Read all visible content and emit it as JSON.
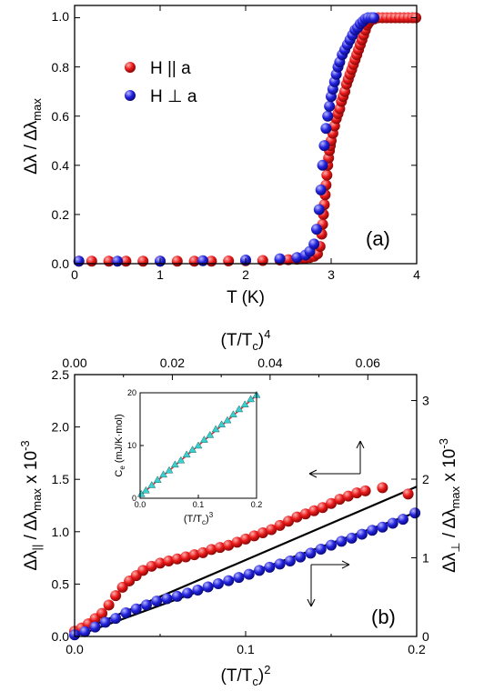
{
  "colors": {
    "parallel": "#e81818",
    "perp": "#2222dd",
    "inset_data": "#3ccfcf",
    "inset_fit": "#d03030",
    "fit": "#000000"
  },
  "chart_data": [
    {
      "id": "a",
      "type": "scatter",
      "panel_label": "(a)",
      "xlabel": "T (K)",
      "ylabel": "Δλ / Δλ",
      "ylabel_sub": "max",
      "xlim": [
        0,
        4
      ],
      "ylim": [
        0,
        1.05
      ],
      "xticks": [
        "0",
        "1",
        "2",
        "3",
        "4"
      ],
      "yticks": [
        "0.0",
        "0.2",
        "0.4",
        "0.6",
        "0.8",
        "1.0"
      ],
      "legend": {
        "placement": "top-left",
        "entries": [
          "H || a",
          "H ⊥ a"
        ]
      },
      "series": [
        {
          "name": "H || a",
          "color": "#e81818",
          "x": [
            0.05,
            0.2,
            0.4,
            0.6,
            0.8,
            1.0,
            1.2,
            1.4,
            1.6,
            1.8,
            2.0,
            2.2,
            2.4,
            2.5,
            2.6,
            2.65,
            2.7,
            2.75,
            2.8,
            2.84,
            2.87,
            2.89,
            2.9,
            2.91,
            2.92,
            2.93,
            2.94,
            2.95,
            2.96,
            2.97,
            2.98,
            2.99,
            3.0,
            3.02,
            3.04,
            3.06,
            3.08,
            3.1,
            3.12,
            3.14,
            3.16,
            3.18,
            3.2,
            3.22,
            3.24,
            3.26,
            3.28,
            3.3,
            3.32,
            3.34,
            3.36,
            3.38,
            3.4,
            3.42,
            3.44,
            3.46,
            3.5,
            3.55,
            3.6,
            3.65,
            3.7,
            3.75,
            3.8,
            3.85,
            3.9,
            3.95,
            3.99
          ],
          "y": [
            0.01,
            0.01,
            0.01,
            0.01,
            0.01,
            0.01,
            0.01,
            0.01,
            0.01,
            0.011,
            0.012,
            0.013,
            0.015,
            0.016,
            0.018,
            0.02,
            0.022,
            0.025,
            0.03,
            0.04,
            0.07,
            0.12,
            0.16,
            0.2,
            0.24,
            0.28,
            0.32,
            0.36,
            0.4,
            0.43,
            0.46,
            0.48,
            0.5,
            0.53,
            0.56,
            0.59,
            0.61,
            0.63,
            0.66,
            0.68,
            0.7,
            0.73,
            0.75,
            0.77,
            0.79,
            0.81,
            0.83,
            0.85,
            0.87,
            0.89,
            0.91,
            0.93,
            0.95,
            0.97,
            0.98,
            0.99,
            0.995,
            1.0,
            1.0,
            1.0,
            1.0,
            1.0,
            1.0,
            1.0,
            1.0,
            1.0,
            1.0
          ]
        },
        {
          "name": "H ⊥ a",
          "color": "#2222dd",
          "x": [
            0.05,
            0.5,
            1.0,
            1.5,
            2.0,
            2.4,
            2.6,
            2.7,
            2.75,
            2.8,
            2.83,
            2.86,
            2.88,
            2.9,
            2.92,
            2.94,
            2.96,
            2.98,
            3.0,
            3.02,
            3.04,
            3.06,
            3.08,
            3.1,
            3.13,
            3.16,
            3.19,
            3.22,
            3.25,
            3.28,
            3.31,
            3.34,
            3.37,
            3.4,
            3.43,
            3.47,
            3.5
          ],
          "y": [
            0.01,
            0.01,
            0.01,
            0.012,
            0.015,
            0.02,
            0.025,
            0.035,
            0.05,
            0.08,
            0.14,
            0.22,
            0.3,
            0.4,
            0.48,
            0.55,
            0.6,
            0.64,
            0.68,
            0.71,
            0.74,
            0.77,
            0.8,
            0.82,
            0.85,
            0.87,
            0.89,
            0.91,
            0.93,
            0.95,
            0.96,
            0.975,
            0.985,
            0.995,
            1.0,
            1.0,
            1.0
          ]
        }
      ]
    },
    {
      "id": "b",
      "type": "scatter",
      "panel_label": "(b)",
      "xlabel": "(T/T",
      "xlabel_sub": "c",
      "xlabel_end": ")",
      "xlabel_sup": "2",
      "xlim": [
        0,
        0.2
      ],
      "xticks": [
        "0.0",
        "0.1",
        "0.2"
      ],
      "top_xlabel": "(T/T",
      "top_xlabel_sub": "c",
      "top_xlabel_end": ")",
      "top_xlabel_sup": "4",
      "top_xlim": [
        0,
        0.07
      ],
      "top_xticks": [
        "0.00",
        "0.02",
        "0.04",
        "0.06"
      ],
      "ylabel_left": "Δλ",
      "ylabel_left_sub": "||",
      "ylabel_left_mid": " / Δλ",
      "ylabel_left_sub2": "max",
      "ylabel_left_end": " x 10",
      "ylabel_left_sup": "-3",
      "ylim_left": [
        0,
        2.5
      ],
      "yticks_left": [
        "0.0",
        "0.5",
        "1.0",
        "1.5",
        "2.0",
        "2.5"
      ],
      "ylabel_right": "Δλ",
      "ylabel_right_sub": "⊥",
      "ylabel_right_mid": " / Δλ",
      "ylabel_right_sub2": "max",
      "ylabel_right_end": " x 10",
      "ylabel_right_sup": "-3",
      "ylim_right": [
        0,
        3.33
      ],
      "yticks_right": [
        "0",
        "1",
        "2",
        "3"
      ],
      "series": [
        {
          "name": "H || a",
          "axis": "left",
          "color": "#e81818",
          "x": [
            0.0,
            0.004,
            0.008,
            0.012,
            0.016,
            0.02,
            0.024,
            0.028,
            0.032,
            0.036,
            0.04,
            0.045,
            0.05,
            0.055,
            0.06,
            0.065,
            0.07,
            0.075,
            0.08,
            0.085,
            0.09,
            0.095,
            0.1,
            0.105,
            0.11,
            0.115,
            0.12,
            0.125,
            0.13,
            0.135,
            0.14,
            0.145,
            0.15,
            0.155,
            0.16,
            0.165,
            0.17,
            0.18,
            0.195
          ],
          "y": [
            0.05,
            0.08,
            0.12,
            0.17,
            0.22,
            0.3,
            0.39,
            0.47,
            0.53,
            0.58,
            0.63,
            0.67,
            0.7,
            0.72,
            0.74,
            0.76,
            0.78,
            0.8,
            0.83,
            0.85,
            0.87,
            0.9,
            0.93,
            0.96,
            0.99,
            1.02,
            1.06,
            1.1,
            1.14,
            1.17,
            1.2,
            1.23,
            1.27,
            1.31,
            1.34,
            1.37,
            1.39,
            1.42,
            1.36
          ]
        },
        {
          "name": "H ⊥ a",
          "axis": "right",
          "color": "#2222dd",
          "x": [
            0.0,
            0.006,
            0.012,
            0.018,
            0.024,
            0.03,
            0.036,
            0.042,
            0.048,
            0.054,
            0.06,
            0.066,
            0.072,
            0.078,
            0.084,
            0.09,
            0.096,
            0.102,
            0.108,
            0.114,
            0.12,
            0.126,
            0.132,
            0.138,
            0.144,
            0.15,
            0.156,
            0.162,
            0.168,
            0.174,
            0.18,
            0.186,
            0.192,
            0.199
          ],
          "y": [
            0.02,
            0.06,
            0.12,
            0.18,
            0.23,
            0.3,
            0.35,
            0.4,
            0.45,
            0.48,
            0.51,
            0.55,
            0.59,
            0.63,
            0.67,
            0.71,
            0.75,
            0.79,
            0.84,
            0.88,
            0.92,
            0.96,
            1.01,
            1.06,
            1.11,
            1.16,
            1.21,
            1.25,
            1.3,
            1.35,
            1.39,
            1.44,
            1.49,
            1.57
          ]
        }
      ],
      "fits": [
        {
          "axis": "left",
          "x": [
            0.0,
            0.2
          ],
          "y": [
            0.03,
            1.43
          ]
        },
        {
          "axis": "right",
          "x": [
            0.0,
            0.2
          ],
          "y": [
            0.0,
            1.58
          ]
        }
      ],
      "arrows": [
        {
          "direction": "up",
          "points_to": "right axis"
        },
        {
          "direction": "left",
          "points_to": "left axis"
        },
        {
          "direction": "right",
          "points_to": "right axis"
        },
        {
          "direction": "down",
          "points_to": "bottom axis"
        }
      ],
      "inset": {
        "type": "scatter",
        "xlabel": "(T/T",
        "xlabel_sub": "c",
        "xlabel_end": ")",
        "xlabel_sup": "3",
        "ylabel": "C",
        "ylabel_sub": "e",
        "ylabel_end": " (mJ/K·mol)",
        "xlim": [
          0,
          0.2
        ],
        "ylim": [
          0,
          20
        ],
        "xticks": [
          "0.0",
          "0.1",
          "0.2"
        ],
        "yticks": [
          "0",
          "10",
          "20"
        ],
        "data": {
          "x": [
            0.002,
            0.01,
            0.02,
            0.03,
            0.04,
            0.05,
            0.06,
            0.07,
            0.08,
            0.09,
            0.1,
            0.11,
            0.12,
            0.13,
            0.14,
            0.15,
            0.16,
            0.17,
            0.18,
            0.19,
            0.2
          ],
          "y": [
            0.8,
            1.5,
            2.5,
            3.5,
            4.5,
            5.3,
            6.4,
            7.2,
            8.3,
            9.2,
            10.0,
            11.1,
            12.0,
            13.1,
            14.0,
            14.8,
            15.9,
            16.9,
            17.8,
            18.8,
            19.6
          ]
        },
        "fit": {
          "x": [
            0.0,
            0.2
          ],
          "y": [
            0.5,
            19.5
          ]
        }
      }
    }
  ]
}
